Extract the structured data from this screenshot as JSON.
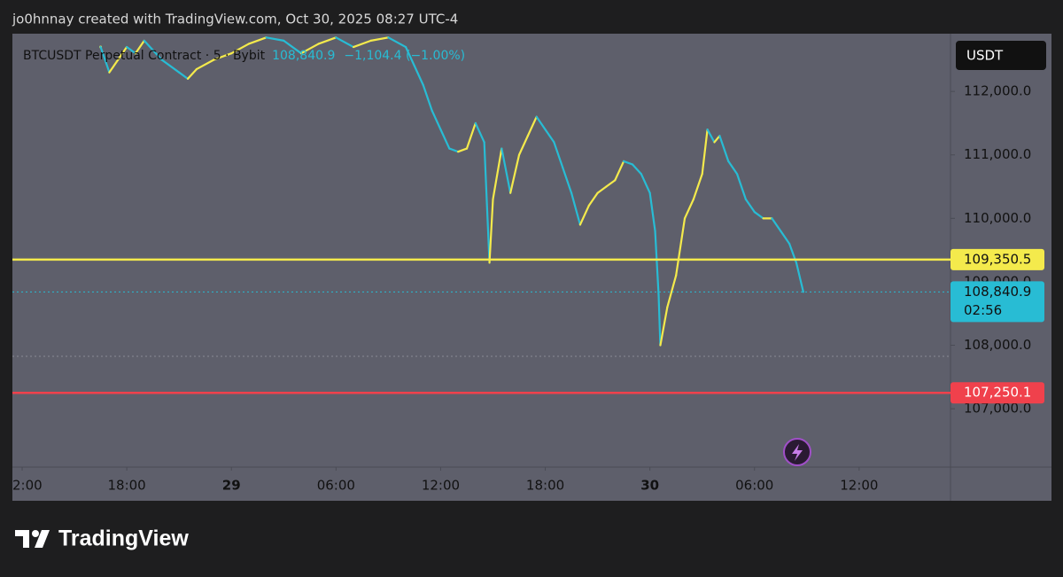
{
  "header": "jo0hnnay created with TradingView.com, Oct 30, 2025 08:27 UTC-4",
  "brand": "TradingView",
  "chart_data": {
    "type": "line",
    "legend": {
      "symbol": "BTCUSDT Perpetual Contract · 5 · Bybit",
      "price": "108,840.9",
      "change": "−1,104.4 (−1.00%)"
    },
    "currency": "USDT",
    "x": [
      -7.5,
      -7,
      -6.5,
      -6,
      -5.5,
      -5,
      -4.5,
      -4,
      -3,
      -2.5,
      -2,
      -1,
      0,
      1,
      2,
      3,
      4,
      5,
      6,
      7,
      8,
      9,
      10,
      10.5,
      11,
      11.5,
      12,
      12.5,
      13,
      13.5,
      14,
      14.5,
      14.8,
      15,
      15.5,
      16,
      16.5,
      17,
      17.5,
      18,
      18.5,
      19,
      19.5,
      20,
      20.5,
      21,
      21.5,
      22,
      22.5,
      23,
      23.5,
      24,
      24.3,
      24.5,
      24.6,
      25,
      25.5,
      26,
      26.5,
      27,
      27.3,
      27.7,
      28,
      28.5,
      29,
      29.5,
      30,
      30.5,
      31,
      31.5,
      32,
      32.4,
      32.8
    ],
    "series": [
      {
        "name": "BTCUSDT",
        "up_color": "#f4ea4c",
        "down_color": "#28bcd4",
        "values": [
          112700,
          112300,
          112500,
          112700,
          112600,
          112800,
          112650,
          112500,
          112300,
          112200,
          112350,
          112500,
          112600,
          112750,
          112850,
          112800,
          112600,
          112750,
          112850,
          112700,
          112800,
          112850,
          112700,
          112400,
          112100,
          111700,
          111400,
          111100,
          111050,
          111100,
          111500,
          111200,
          109300,
          110300,
          111100,
          110400,
          111000,
          111300,
          111600,
          111400,
          111200,
          110800,
          110400,
          109900,
          110200,
          110400,
          110500,
          110600,
          110900,
          110850,
          110700,
          110400,
          109800,
          108800,
          108000,
          108600,
          109100,
          110000,
          110300,
          110700,
          111400,
          111200,
          111300,
          110900,
          110700,
          110300,
          110100,
          110000,
          110000,
          109800,
          109600,
          109300,
          108840.9
        ]
      }
    ],
    "levels": [
      {
        "value": 109350.5,
        "label": "109,350.5",
        "color": "#f4ea4c"
      },
      {
        "value": 107250.1,
        "label": "107,250.1",
        "color": "#f0414c"
      }
    ],
    "last": {
      "value": 108840.9,
      "label": "108,840.9",
      "countdown": "02:56",
      "color": "#28bcd4"
    },
    "xlim": [
      -12.56,
      41.24
    ],
    "xticks": [
      {
        "value": -12,
        "label": "2:00"
      },
      {
        "value": -6,
        "label": "18:00"
      },
      {
        "value": 0,
        "label": "29"
      },
      {
        "value": 6,
        "label": "06:00"
      },
      {
        "value": 12,
        "label": "12:00"
      },
      {
        "value": 18,
        "label": "18:00"
      },
      {
        "value": 24,
        "label": "30"
      },
      {
        "value": 30,
        "label": "06:00"
      },
      {
        "value": 36,
        "label": "12:00"
      }
    ],
    "ylim": [
      106080,
      112910
    ],
    "yticks": [
      {
        "value": 107000,
        "label": "107,000.0"
      },
      {
        "value": 108000,
        "label": "108,000.0"
      },
      {
        "value": 109000,
        "label": "109,000.0"
      },
      {
        "value": 110000,
        "label": "110,000.0"
      },
      {
        "value": 111000,
        "label": "111,000.0"
      },
      {
        "value": 112000,
        "label": "112,000.0"
      }
    ]
  }
}
